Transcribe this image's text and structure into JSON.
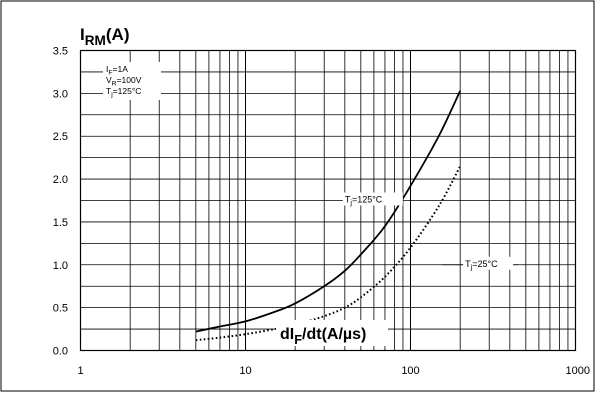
{
  "chart_data": {
    "type": "line",
    "x_scale": "log",
    "y_scale": "linear",
    "xlim": [
      1,
      1000
    ],
    "ylim": [
      0,
      3.5
    ],
    "grid": true,
    "ylabel": {
      "main": "I",
      "sub": "RM",
      "rest": "(A)"
    },
    "xlabel": {
      "main": "dI",
      "sub": "F",
      "rest": "/dt(A/µs)"
    },
    "x_ticks": [
      {
        "value": 1,
        "label": "1"
      },
      {
        "value": 10,
        "label": "10"
      },
      {
        "value": 100,
        "label": "100"
      },
      {
        "value": 1000,
        "label": "1000"
      }
    ],
    "y_ticks": [
      {
        "value": 0.0,
        "label": "0.0"
      },
      {
        "value": 0.5,
        "label": "0.5"
      },
      {
        "value": 1.0,
        "label": "1.0"
      },
      {
        "value": 1.5,
        "label": "1.5"
      },
      {
        "value": 2.0,
        "label": "2.0"
      },
      {
        "value": 2.5,
        "label": "2.5"
      },
      {
        "value": 3.0,
        "label": "3.0"
      },
      {
        "value": 3.5,
        "label": "3.5"
      }
    ],
    "conditions": [
      {
        "main": "I",
        "sub": "F",
        "rest": "=1A"
      },
      {
        "main": "V",
        "sub": "R",
        "rest": "=100V"
      },
      {
        "main": "T",
        "sub": "j",
        "rest": "=125°C"
      }
    ],
    "series": [
      {
        "name": "Tj=125°C",
        "label": {
          "main": "T",
          "sub": "j",
          "rest": "=125°C"
        },
        "style": "solid",
        "color": "#000000",
        "x": [
          5,
          7,
          10,
          15,
          20,
          30,
          40,
          50,
          70,
          100,
          150,
          200
        ],
        "y": [
          0.22,
          0.28,
          0.34,
          0.45,
          0.55,
          0.75,
          0.93,
          1.12,
          1.45,
          1.92,
          2.52,
          3.03
        ]
      },
      {
        "name": "Tj=25°C",
        "label": {
          "main": "T",
          "sub": "j",
          "rest": "=25°C"
        },
        "style": "dotted",
        "color": "#000000",
        "x": [
          5,
          7,
          10,
          15,
          20,
          30,
          40,
          50,
          70,
          100,
          150,
          200
        ],
        "y": [
          0.12,
          0.15,
          0.19,
          0.25,
          0.3,
          0.4,
          0.5,
          0.62,
          0.86,
          1.2,
          1.7,
          2.15
        ]
      }
    ]
  }
}
